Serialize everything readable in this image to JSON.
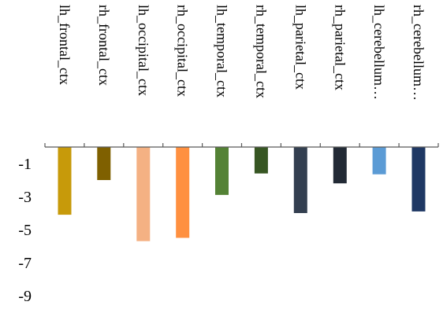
{
  "chart_data": {
    "type": "bar",
    "title": "",
    "xlabel": "",
    "ylabel": "",
    "ylim": [
      -9,
      1
    ],
    "y_ticks": [
      -1,
      -3,
      -5,
      -7,
      -9
    ],
    "y_tick_labels": [
      "-1",
      "-3",
      "-5",
      "-7",
      "-9"
    ],
    "grid": false,
    "legend": "none",
    "category_label_position": "above axis, rotated vertical",
    "categories": [
      "lh_frontal_ctx",
      "rh_frontal_ctx",
      "lh_occipital_ctx",
      "rh_occipital_ctx",
      "lh_temporal_ctx",
      "rh_temporal_ctx",
      "lh_parietal_ctx",
      "rh_parietal_ctx",
      "lh_cerebellum…",
      "rh_cerebellum…"
    ],
    "values": [
      -4.1,
      -2.0,
      -5.7,
      -5.5,
      -2.9,
      -1.6,
      -4.0,
      -2.2,
      -1.65,
      -3.9
    ],
    "colors": [
      "#c79a0a",
      "#7f6000",
      "#f4b183",
      "#ff9040",
      "#548235",
      "#375623",
      "#333f50",
      "#222a35",
      "#5b9bd5",
      "#1f3864"
    ]
  }
}
